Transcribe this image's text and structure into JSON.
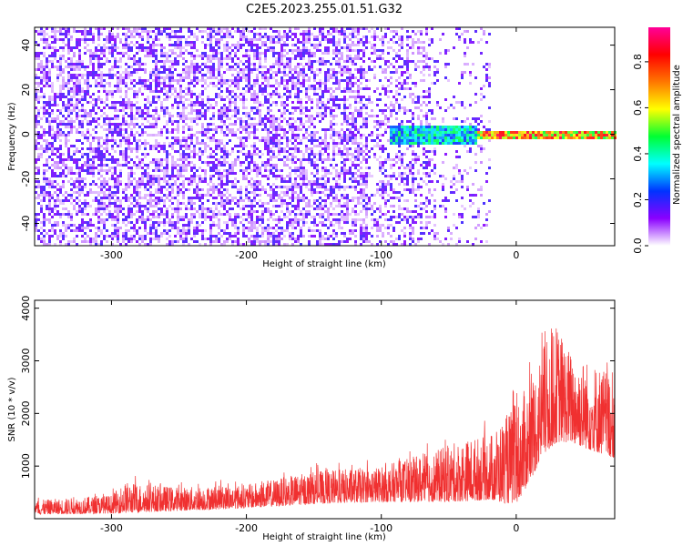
{
  "title": "C2E5.2023.255.01.51.G32",
  "chart_data": [
    {
      "type": "heatmap",
      "xlabel": "Height of straight line (km)",
      "ylabel": "Frequency (Hz)",
      "xlim": [
        -357,
        73
      ],
      "ylim": [
        -50,
        48
      ],
      "xticks": [
        -300,
        -200,
        -100,
        0
      ],
      "yticks": [
        -40,
        -20,
        0,
        20,
        40
      ],
      "colorbar": {
        "label": "Normalized spectral amplitude",
        "range": [
          0,
          0.95
        ],
        "ticks": [
          0.0,
          0.2,
          0.4,
          0.6,
          0.8
        ],
        "tick_labels": [
          "0.0",
          "0.2",
          "0.4",
          "0.6",
          "0.8"
        ],
        "colormap": [
          "#ffffff",
          "#8a00ff",
          "#0033ff",
          "#00ffff",
          "#00ff33",
          "#ffff00",
          "#ff7700",
          "#ff0000",
          "#ff0099"
        ]
      },
      "features": {
        "noise_region_km": [
          -357,
          -20
        ],
        "signal_line_hz": 0,
        "signal_start_km": -95,
        "strong_signal_km": [
          -20,
          73
        ]
      }
    },
    {
      "type": "line",
      "xlabel": "Height of straight line (km)",
      "ylabel": "SNR (10 * v/v)",
      "xlim": [
        -357,
        73
      ],
      "ylim": [
        0,
        4150
      ],
      "xticks": [
        -300,
        -200,
        -100,
        0
      ],
      "yticks": [
        1000,
        2000,
        3000,
        4000
      ],
      "color": "#f03030",
      "envelope": {
        "x": [
          -357,
          -300,
          -290,
          -250,
          -200,
          -150,
          -100,
          -60,
          -40,
          -20,
          -10,
          0,
          10,
          20,
          30,
          40,
          55,
          73
        ],
        "base": [
          80,
          100,
          110,
          150,
          200,
          280,
          320,
          320,
          330,
          360,
          300,
          280,
          700,
          1200,
          1450,
          1450,
          1300,
          1150
        ],
        "top": [
          350,
          450,
          700,
          600,
          650,
          900,
          1000,
          1300,
          1500,
          1600,
          1900,
          2200,
          2600,
          3300,
          3700,
          3200,
          3000,
          2800
        ]
      }
    }
  ]
}
